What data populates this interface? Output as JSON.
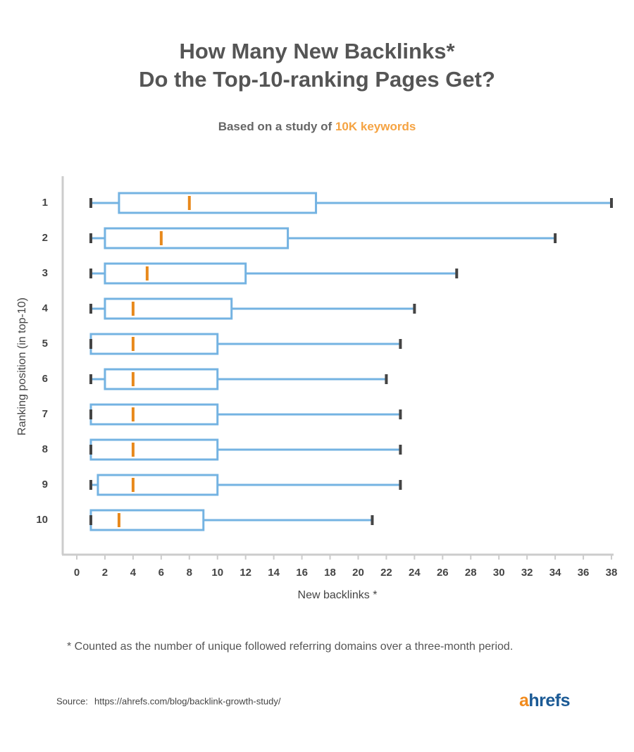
{
  "chart_data": {
    "type": "box",
    "title": [
      "How Many New Backlinks*",
      "Do the Top-10-ranking Pages Get?"
    ],
    "subtitle": "Based on a study of",
    "subtitle_highlight": "10K keywords",
    "x_label": "New backlinks *",
    "y_label": "Ranking position (in top-10)",
    "categories": [
      "1",
      "2",
      "3",
      "4",
      "5",
      "6",
      "7",
      "8",
      "9",
      "10"
    ],
    "min": [
      1,
      1,
      1,
      1,
      1,
      1,
      1,
      1,
      1,
      1
    ],
    "q1": [
      3,
      2,
      2,
      2,
      1,
      2,
      1,
      1,
      1.5,
      1
    ],
    "median": [
      8,
      6,
      5,
      4,
      4,
      4,
      4,
      4,
      4,
      3
    ],
    "q3": [
      17,
      15,
      12,
      11,
      10,
      10,
      10,
      10,
      10,
      9
    ],
    "max": [
      38,
      34,
      27,
      24,
      23,
      22,
      23,
      23,
      23,
      21
    ],
    "box_color": "#74b3e2",
    "median_color": "#e8891c",
    "cap_color": "#444444",
    "xlim": [
      0,
      38
    ],
    "xticks": [
      0,
      2,
      4,
      6,
      8,
      10,
      12,
      14,
      16,
      18,
      20,
      22,
      24,
      26,
      28,
      30,
      32,
      34,
      36,
      38
    ]
  },
  "footnote": "* Counted as the number of unique followed referring domains over a three-month period.",
  "source": {
    "label": "Source:",
    "url": "https://ahrefs.com/blog/backlink-growth-study/"
  },
  "logo": "ahrefs"
}
